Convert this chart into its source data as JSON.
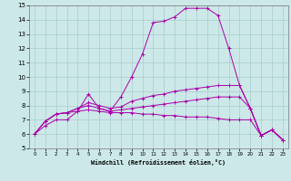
{
  "xlabel": "Windchill (Refroidissement éolien,°C)",
  "bg_color": "#cce8e8",
  "grid_color": "#aacccc",
  "line_color": "#aa00aa",
  "xlim": [
    -0.5,
    23.5
  ],
  "ylim": [
    5,
    15
  ],
  "xticks": [
    0,
    1,
    2,
    3,
    4,
    5,
    6,
    7,
    8,
    9,
    10,
    11,
    12,
    13,
    14,
    15,
    16,
    17,
    18,
    19,
    20,
    21,
    22,
    23
  ],
  "yticks": [
    5,
    6,
    7,
    8,
    9,
    10,
    11,
    12,
    13,
    14,
    15
  ],
  "series": [
    [
      6.0,
      6.6,
      7.0,
      7.0,
      7.6,
      8.8,
      7.8,
      7.6,
      8.6,
      10.0,
      11.6,
      13.8,
      13.9,
      14.2,
      14.8,
      14.8,
      14.8,
      14.3,
      12.0,
      9.4,
      7.8,
      5.9,
      6.3,
      5.6
    ],
    [
      6.0,
      6.9,
      7.4,
      7.5,
      7.8,
      8.2,
      8.0,
      7.8,
      7.9,
      8.3,
      8.5,
      8.7,
      8.8,
      9.0,
      9.1,
      9.2,
      9.3,
      9.4,
      9.4,
      9.4,
      7.8,
      5.9,
      6.3,
      5.6
    ],
    [
      6.0,
      6.9,
      7.4,
      7.5,
      7.8,
      8.0,
      7.8,
      7.6,
      7.7,
      7.8,
      7.9,
      8.0,
      8.1,
      8.2,
      8.3,
      8.4,
      8.5,
      8.6,
      8.6,
      8.6,
      7.8,
      5.9,
      6.3,
      5.6
    ],
    [
      6.0,
      6.9,
      7.4,
      7.5,
      7.6,
      7.7,
      7.6,
      7.5,
      7.5,
      7.5,
      7.4,
      7.4,
      7.3,
      7.3,
      7.2,
      7.2,
      7.2,
      7.1,
      7.0,
      7.0,
      7.0,
      5.9,
      6.3,
      5.6
    ]
  ]
}
